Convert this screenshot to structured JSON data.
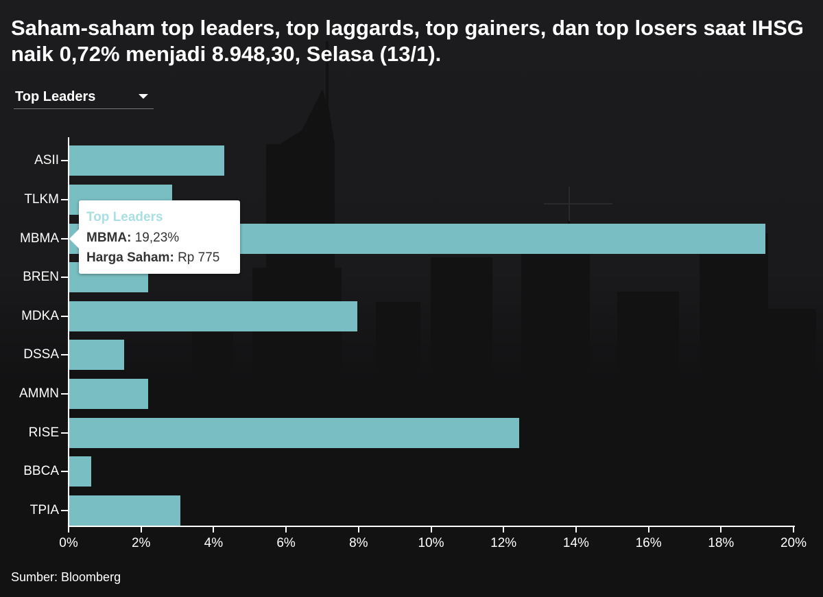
{
  "title": "Saham-saham top leaders, top laggards, top gainers, dan top losers saat IHSG naik 0,72% menjadi 8.948,30, Selasa (13/1).",
  "dropdown": {
    "selected": "Top Leaders",
    "icon": "caret-down-icon"
  },
  "tooltip": {
    "title": "Top Leaders",
    "ticker_label": "MBMA:",
    "ticker_value": "19,23%",
    "price_label": "Harga Saham:",
    "price_value": "Rp 775"
  },
  "source": "Sumber: Bloomberg",
  "colors": {
    "bar": "#7cc4c8",
    "tooltip_title": "#a9dfe3",
    "background": "#1a1a1c"
  },
  "chart_data": {
    "type": "bar",
    "orientation": "horizontal",
    "title": "Saham-saham top leaders, top laggards, top gainers, dan top losers saat IHSG naik 0,72% menjadi 8.948,30, Selasa (13/1).",
    "series_name": "Top Leaders",
    "categories": [
      "ASII",
      "TLKM",
      "MBMA",
      "BREN",
      "MDKA",
      "DSSA",
      "AMMN",
      "RISE",
      "BBCA",
      "TPIA"
    ],
    "values": [
      4.3,
      2.85,
      19.23,
      2.2,
      7.97,
      1.53,
      2.2,
      12.43,
      0.62,
      3.08
    ],
    "unit": "%",
    "xlabel": "",
    "ylabel": "",
    "xlim": [
      0,
      20
    ],
    "x_ticks": [
      "0%",
      "2%",
      "4%",
      "6%",
      "8%",
      "10%",
      "12%",
      "14%",
      "16%",
      "18%",
      "20%"
    ],
    "grid": false,
    "legend": "none",
    "source": "Sumber: Bloomberg"
  }
}
